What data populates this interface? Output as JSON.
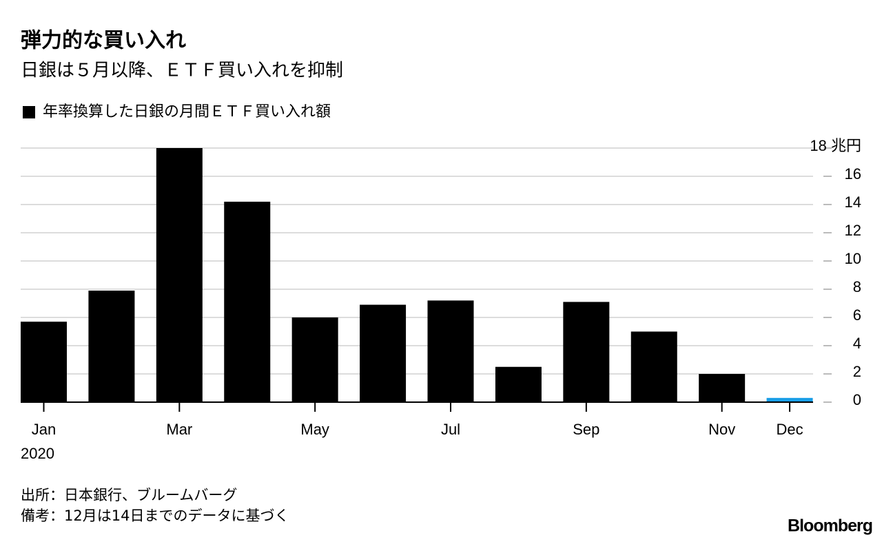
{
  "chart_data": {
    "type": "bar",
    "title": "弾力的な買い入れ",
    "subtitle": "日銀は５月以降、ＥＴＦ買い入れを抑制",
    "categories": [
      "Jan",
      null,
      "Mar",
      null,
      "May",
      null,
      "Jul",
      null,
      "Sep",
      null,
      "Nov",
      "Dec"
    ],
    "year_label": "2020",
    "series": [
      {
        "name": "年率換算した日銀の月間ＥＴＦ買い入れ額",
        "color": "#000000",
        "values": [
          5.7,
          7.9,
          18.0,
          14.2,
          6.0,
          6.9,
          7.2,
          2.5,
          7.1,
          5.0,
          2.0,
          0.3
        ],
        "colors": [
          "#000000",
          "#000000",
          "#000000",
          "#000000",
          "#000000",
          "#000000",
          "#000000",
          "#000000",
          "#000000",
          "#000000",
          "#000000",
          "#1a9fe8"
        ]
      }
    ],
    "ylim": [
      0,
      18
    ],
    "yticks": [
      0,
      2,
      4,
      6,
      8,
      10,
      12,
      14,
      16,
      {
        "value": 18,
        "label": "18 兆円"
      }
    ],
    "grid": true
  },
  "footer": {
    "source": "出所：日本銀行、ブルームバーグ",
    "note": "備考：12月は14日までのデータに基づく",
    "logo": "Bloomberg"
  }
}
